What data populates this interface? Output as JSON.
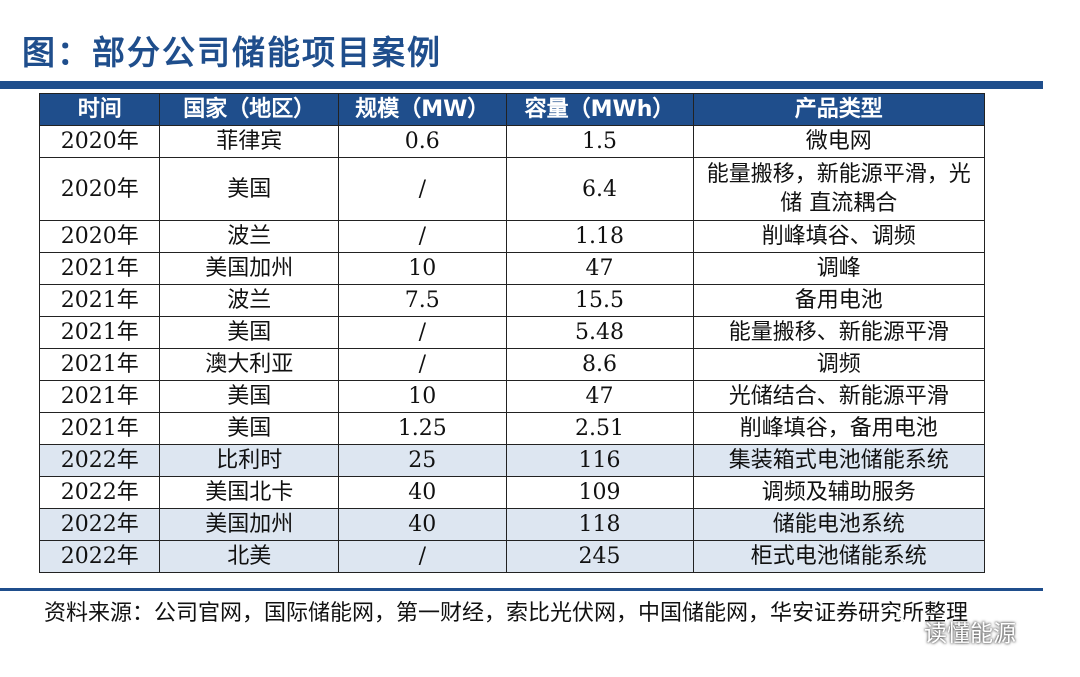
{
  "title": "图：部分公司储能项目案例",
  "table": {
    "headers": [
      "时间",
      "国家（地区）",
      "规模（MW）",
      "容量（MWh）",
      "产品类型"
    ],
    "rows": [
      [
        "2020年",
        "菲律宾",
        "0.6",
        "1.5",
        "微电网"
      ],
      [
        "2020年",
        "美国",
        "/",
        "6.4",
        "能量搬移，新能源平滑，光储 直流耦合"
      ],
      [
        "2020年",
        "波兰",
        "/",
        "1.18",
        "削峰填谷、调频"
      ],
      [
        "2021年",
        "美国加州",
        "10",
        "47",
        "调峰"
      ],
      [
        "2021年",
        "波兰",
        "7.5",
        "15.5",
        "备用电池"
      ],
      [
        "2021年",
        "美国",
        "/",
        "5.48",
        "能量搬移、新能源平滑"
      ],
      [
        "2021年",
        "澳大利亚",
        "/",
        "8.6",
        "调频"
      ],
      [
        "2021年",
        "美国",
        "10",
        "47",
        "光储结合、新能源平滑"
      ],
      [
        "2021年",
        "美国",
        "1.25",
        "2.51",
        "削峰填谷，备用电池"
      ],
      [
        "2022年",
        "比利时",
        "25",
        "116",
        "集装箱式电池储能系统"
      ],
      [
        "2022年",
        "美国北卡",
        "40",
        "109",
        "调频及辅助服务"
      ],
      [
        "2022年",
        "美国加州",
        "40",
        "118",
        "储能电池系统"
      ],
      [
        "2022年",
        "北美",
        "/",
        "245",
        "柜式电池储能系统"
      ]
    ]
  },
  "source": "资料来源：公司官网，国际储能网，第一财经，索比光伏网，中国储能网，华安证券研究所整理",
  "watermark": "读懂能源",
  "colors": {
    "accent": "#1f4e8c",
    "shade": "#dde6f1"
  }
}
